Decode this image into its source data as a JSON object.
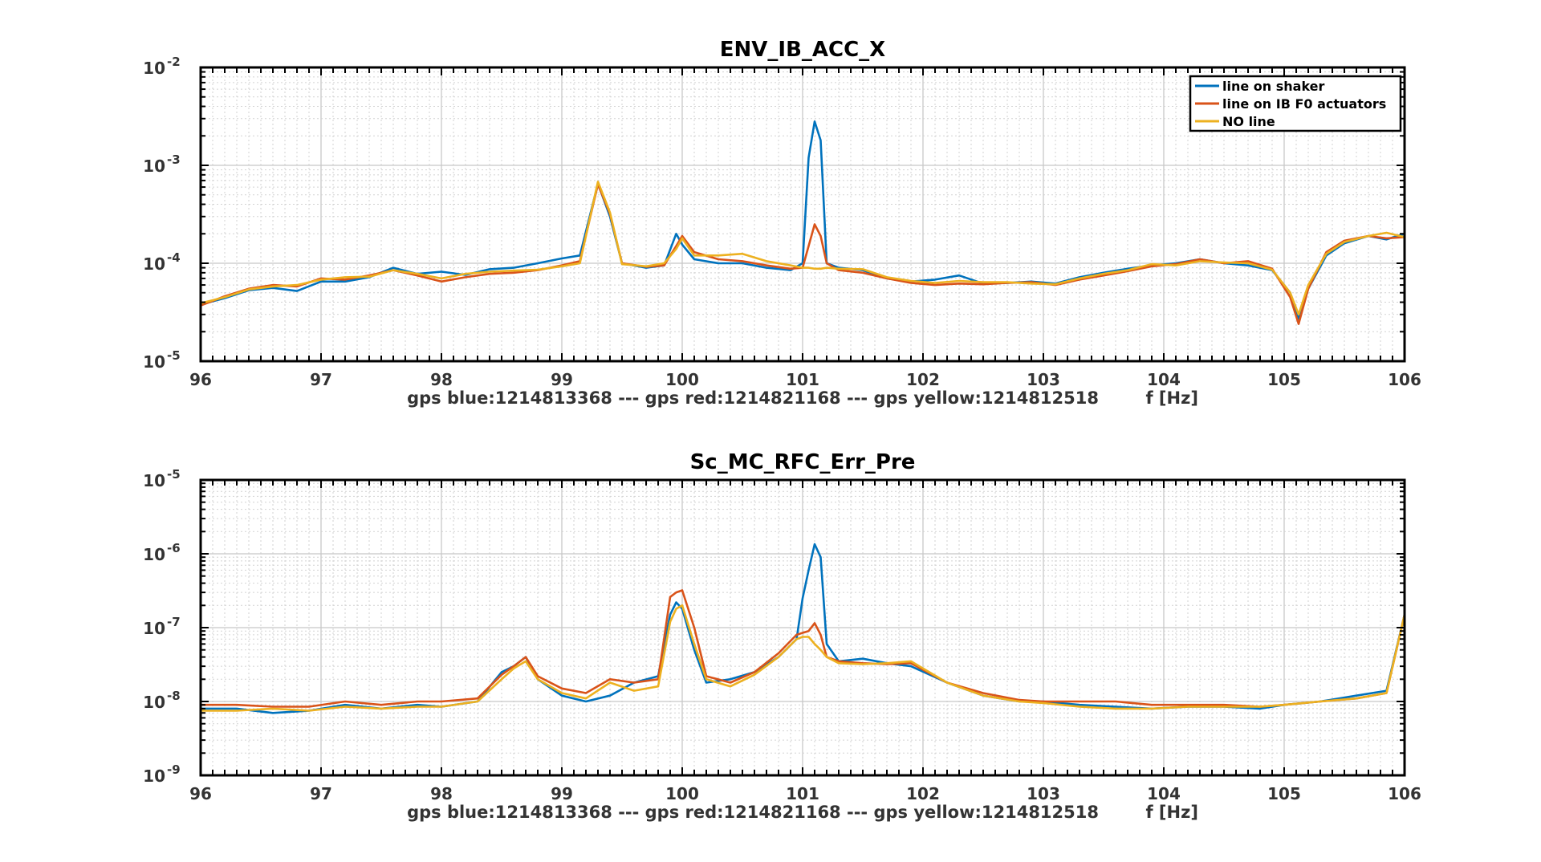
{
  "chart_data": [
    {
      "type": "line",
      "title": "ENV_IB_ACC_X",
      "xlabel": "gps blue:1214813368 --- gps red:1214821168 --- gps yellow:1214812518        f [Hz]",
      "ylabel": "",
      "xlim": [
        96,
        106
      ],
      "ylim": [
        1e-05,
        0.01
      ],
      "yscale": "log",
      "xticks": [
        "96",
        "97",
        "98",
        "99",
        "100",
        "101",
        "102",
        "103",
        "104",
        "105",
        "106"
      ],
      "yticks": [
        {
          "base": "10",
          "exp": "-5"
        },
        {
          "base": "10",
          "exp": "-4"
        },
        {
          "base": "10",
          "exp": "-3"
        },
        {
          "base": "10",
          "exp": "-2"
        }
      ],
      "grid": true,
      "legend": "top-right",
      "series": [
        {
          "name": "line on shaker",
          "color": "#0072BD",
          "x": [
            96,
            96.2,
            96.4,
            96.6,
            96.8,
            97,
            97.2,
            97.4,
            97.6,
            97.8,
            98,
            98.2,
            98.4,
            98.6,
            98.8,
            99,
            99.15,
            99.3,
            99.4,
            99.5,
            99.7,
            99.85,
            99.95,
            100,
            100.1,
            100.3,
            100.5,
            100.7,
            100.9,
            101,
            101.05,
            101.1,
            101.15,
            101.2,
            101.3,
            101.5,
            101.7,
            101.9,
            102.1,
            102.3,
            102.5,
            102.7,
            102.9,
            103.1,
            103.3,
            103.5,
            103.7,
            103.9,
            104.1,
            104.3,
            104.5,
            104.7,
            104.9,
            105.05,
            105.12,
            105.2,
            105.35,
            105.5,
            105.7,
            105.85,
            106
          ],
          "y": [
            3.8e-05,
            4.4e-05,
            5.3e-05,
            5.6e-05,
            5.2e-05,
            6.5e-05,
            6.5e-05,
            7.2e-05,
            9e-05,
            7.8e-05,
            8.2e-05,
            7.6e-05,
            8.7e-05,
            9e-05,
            0.0001,
            0.000112,
            0.00012,
            0.00065,
            0.0003,
            0.0001,
            9e-05,
            9.5e-05,
            0.0002,
            0.000155,
            0.00011,
            0.0001,
            0.0001,
            9e-05,
            8.5e-05,
            0.0001,
            0.0012,
            0.0028,
            0.0018,
            0.0001,
            9e-05,
            8.5e-05,
            7e-05,
            6.5e-05,
            6.8e-05,
            7.5e-05,
            6.2e-05,
            6.3e-05,
            6.5e-05,
            6.2e-05,
            7.2e-05,
            8e-05,
            8.8e-05,
            9.5e-05,
            0.0001,
            0.00011,
            0.0001,
            9.5e-05,
            8.5e-05,
            5e-05,
            2.7e-05,
            5.5e-05,
            0.00012,
            0.00016,
            0.00019,
            0.000175,
            0.0002
          ]
        },
        {
          "name": "line on IB F0 actuators",
          "color": "#D95319",
          "x": [
            96,
            96.2,
            96.4,
            96.6,
            96.8,
            97,
            97.2,
            97.4,
            97.6,
            97.8,
            98,
            98.2,
            98.4,
            98.6,
            98.8,
            99,
            99.15,
            99.3,
            99.4,
            99.5,
            99.7,
            99.85,
            99.95,
            100,
            100.1,
            100.3,
            100.5,
            100.7,
            100.9,
            101,
            101.05,
            101.1,
            101.15,
            101.2,
            101.3,
            101.5,
            101.7,
            101.9,
            102.1,
            102.3,
            102.5,
            102.7,
            102.9,
            103.1,
            103.3,
            103.5,
            103.7,
            103.9,
            104.1,
            104.3,
            104.5,
            104.7,
            104.9,
            105.05,
            105.12,
            105.2,
            105.35,
            105.5,
            105.7,
            105.85,
            106
          ],
          "y": [
            3.7e-05,
            4.6e-05,
            5.5e-05,
            6e-05,
            5.8e-05,
            7e-05,
            6.8e-05,
            7.5e-05,
            8.5e-05,
            7.5e-05,
            6.5e-05,
            7.2e-05,
            7.8e-05,
            8e-05,
            8.5e-05,
            9.5e-05,
            0.000105,
            0.00064,
            0.00032,
            0.0001,
            9.2e-05,
            9.5e-05,
            0.00015,
            0.00019,
            0.00013,
            0.00011,
            0.000105,
            9.5e-05,
            8.8e-05,
            9e-05,
            0.00015,
            0.00025,
            0.00019,
            0.0001,
            8.5e-05,
            8e-05,
            7e-05,
            6.3e-05,
            6e-05,
            6.2e-05,
            6.1e-05,
            6.3e-05,
            6.4e-05,
            6e-05,
            6.8e-05,
            7.5e-05,
            8.3e-05,
            9.3e-05,
            9.8e-05,
            0.00011,
            0.0001,
            0.000105,
            8.8e-05,
            4.5e-05,
            2.4e-05,
            5.5e-05,
            0.00013,
            0.00017,
            0.00019,
            0.00018,
            0.000185
          ]
        },
        {
          "name": "NO line",
          "color": "#EDB120",
          "x": [
            96,
            96.2,
            96.4,
            96.6,
            96.8,
            97,
            97.2,
            97.4,
            97.6,
            97.8,
            98,
            98.2,
            98.4,
            98.6,
            98.8,
            99,
            99.15,
            99.3,
            99.4,
            99.5,
            99.7,
            99.85,
            99.95,
            100,
            100.1,
            100.3,
            100.5,
            100.7,
            100.9,
            101,
            101.05,
            101.1,
            101.15,
            101.2,
            101.3,
            101.5,
            101.7,
            101.9,
            102.1,
            102.3,
            102.5,
            102.7,
            102.9,
            103.1,
            103.3,
            103.5,
            103.7,
            103.9,
            104.1,
            104.3,
            104.5,
            104.7,
            104.9,
            105.05,
            105.12,
            105.2,
            105.35,
            105.5,
            105.7,
            105.85,
            106
          ],
          "y": [
            3.9e-05,
            4.5e-05,
            5.4e-05,
            5.8e-05,
            6e-05,
            6.8e-05,
            7.2e-05,
            7.3e-05,
            8.5e-05,
            7.8e-05,
            7e-05,
            7.8e-05,
            8.2e-05,
            8.4e-05,
            8.6e-05,
            9.3e-05,
            0.0001,
            0.00068,
            0.00033,
            9.8e-05,
            9.3e-05,
            0.0001,
            0.00014,
            0.00018,
            0.00012,
            0.00012,
            0.000125,
            0.000105,
            9.5e-05,
            9e-05,
            9e-05,
            8.8e-05,
            8.8e-05,
            9e-05,
            8.8e-05,
            8.7e-05,
            7.2e-05,
            6.6e-05,
            6.3e-05,
            6.6e-05,
            6.4e-05,
            6.4e-05,
            6.2e-05,
            6.1e-05,
            7e-05,
            7.8e-05,
            8.5e-05,
            9.8e-05,
            9.5e-05,
            0.000105,
            0.000102,
            0.0001,
            8.6e-05,
            5e-05,
            3e-05,
            6e-05,
            0.000125,
            0.000165,
            0.00019,
            0.000205,
            0.000185
          ]
        }
      ]
    },
    {
      "type": "line",
      "title": "Sc_MC_RFC_Err_Pre",
      "xlabel": "gps blue:1214813368 --- gps red:1214821168 --- gps yellow:1214812518        f [Hz]",
      "ylabel": "",
      "xlim": [
        96,
        106
      ],
      "ylim": [
        1e-09,
        1e-05
      ],
      "yscale": "log",
      "xticks": [
        "96",
        "97",
        "98",
        "99",
        "100",
        "101",
        "102",
        "103",
        "104",
        "105",
        "106"
      ],
      "yticks": [
        {
          "base": "10",
          "exp": "-9"
        },
        {
          "base": "10",
          "exp": "-8"
        },
        {
          "base": "10",
          "exp": "-7"
        },
        {
          "base": "10",
          "exp": "-6"
        },
        {
          "base": "10",
          "exp": "-5"
        }
      ],
      "grid": true,
      "series": [
        {
          "name": "line on shaker",
          "color": "#0072BD",
          "x": [
            96,
            96.3,
            96.6,
            96.9,
            97.2,
            97.5,
            97.8,
            98,
            98.3,
            98.5,
            98.6,
            98.7,
            98.8,
            99,
            99.2,
            99.4,
            99.6,
            99.8,
            99.9,
            99.95,
            100,
            100.1,
            100.2,
            100.4,
            100.6,
            100.8,
            100.95,
            101,
            101.05,
            101.1,
            101.15,
            101.2,
            101.3,
            101.5,
            101.7,
            101.9,
            102.2,
            102.5,
            102.8,
            103,
            103.3,
            103.6,
            103.9,
            104.2,
            104.5,
            104.8,
            105,
            105.3,
            105.6,
            105.85,
            106
          ],
          "y": [
            8e-09,
            8e-09,
            7e-09,
            7.5e-09,
            9e-09,
            8e-09,
            9e-09,
            8.5e-09,
            1e-08,
            2.5e-08,
            3e-08,
            4e-08,
            2e-08,
            1.2e-08,
            1e-08,
            1.2e-08,
            1.8e-08,
            2.2e-08,
            1.5e-07,
            2.2e-07,
            1.8e-07,
            5e-08,
            1.8e-08,
            2e-08,
            2.5e-08,
            4e-08,
            7e-08,
            2.5e-07,
            6e-07,
            1.35e-06,
            9e-07,
            6e-08,
            3.5e-08,
            3.8e-08,
            3.3e-08,
            3e-08,
            1.8e-08,
            1.2e-08,
            1e-08,
            1e-08,
            9e-09,
            8.5e-09,
            8e-09,
            8.5e-09,
            8.5e-09,
            8e-09,
            9e-09,
            1e-08,
            1.2e-08,
            1.4e-08,
            1.5e-07
          ]
        },
        {
          "name": "line on IB F0 actuators",
          "color": "#D95319",
          "x": [
            96,
            96.3,
            96.6,
            96.9,
            97.2,
            97.5,
            97.8,
            98,
            98.3,
            98.5,
            98.6,
            98.7,
            98.8,
            99,
            99.2,
            99.4,
            99.6,
            99.8,
            99.9,
            99.95,
            100,
            100.1,
            100.2,
            100.4,
            100.6,
            100.8,
            100.95,
            101,
            101.05,
            101.1,
            101.15,
            101.2,
            101.3,
            101.5,
            101.7,
            101.9,
            102.2,
            102.5,
            102.8,
            103,
            103.3,
            103.6,
            103.9,
            104.2,
            104.5,
            104.8,
            105,
            105.3,
            105.6,
            105.85,
            106
          ],
          "y": [
            9e-09,
            9e-09,
            8.5e-09,
            8.5e-09,
            1e-08,
            9e-09,
            1e-08,
            1e-08,
            1.1e-08,
            2.3e-08,
            3e-08,
            4e-08,
            2.2e-08,
            1.5e-08,
            1.3e-08,
            2e-08,
            1.8e-08,
            2e-08,
            2.6e-07,
            3e-07,
            3.2e-07,
            1e-07,
            2.2e-08,
            1.8e-08,
            2.5e-08,
            4.5e-08,
            8e-08,
            8.5e-08,
            9e-08,
            1.15e-07,
            8e-08,
            4e-08,
            3.5e-08,
            3.3e-08,
            3.2e-08,
            3.3e-08,
            1.8e-08,
            1.3e-08,
            1.05e-08,
            1e-08,
            1e-08,
            1e-08,
            9e-09,
            9e-09,
            9e-09,
            8.5e-09,
            9e-09,
            1e-08,
            1.1e-08,
            1.3e-08,
            1.5e-07
          ]
        },
        {
          "name": "NO line",
          "color": "#EDB120",
          "x": [
            96,
            96.3,
            96.6,
            96.9,
            97.2,
            97.5,
            97.8,
            98,
            98.3,
            98.5,
            98.6,
            98.7,
            98.8,
            99,
            99.2,
            99.4,
            99.6,
            99.8,
            99.9,
            99.95,
            100,
            100.1,
            100.2,
            100.4,
            100.6,
            100.8,
            100.95,
            101,
            101.05,
            101.1,
            101.15,
            101.2,
            101.3,
            101.5,
            101.7,
            101.9,
            102.2,
            102.5,
            102.8,
            103,
            103.3,
            103.6,
            103.9,
            104.2,
            104.5,
            104.8,
            105,
            105.3,
            105.6,
            105.85,
            106
          ],
          "y": [
            7.5e-09,
            7.5e-09,
            8e-09,
            7.5e-09,
            8.5e-09,
            8e-09,
            8.5e-09,
            8.5e-09,
            1e-08,
            2e-08,
            2.8e-08,
            3.5e-08,
            2e-08,
            1.3e-08,
            1.1e-08,
            1.8e-08,
            1.4e-08,
            1.6e-08,
            1.2e-07,
            1.8e-07,
            2e-07,
            6e-08,
            2e-08,
            1.6e-08,
            2.3e-08,
            4e-08,
            7e-08,
            7.5e-08,
            7.5e-08,
            6e-08,
            5e-08,
            4e-08,
            3.3e-08,
            3.2e-08,
            3.3e-08,
            3.5e-08,
            1.8e-08,
            1.2e-08,
            1e-08,
            9.5e-09,
            8.5e-09,
            8e-09,
            8e-09,
            8.5e-09,
            8.5e-09,
            8.5e-09,
            9e-09,
            1e-08,
            1.1e-08,
            1.3e-08,
            1.5e-07
          ]
        }
      ]
    }
  ]
}
